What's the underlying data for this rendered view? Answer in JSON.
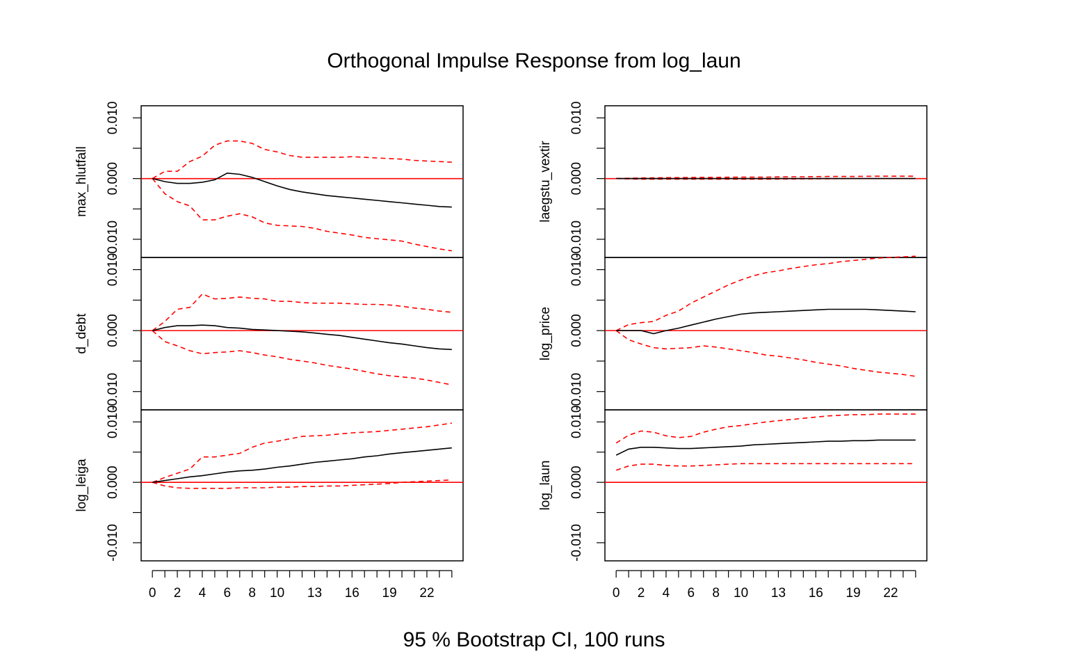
{
  "chart_data": {
    "type": "line",
    "title": "Orthogonal Impulse Response from log_laun",
    "xlabel": "95 % Bootstrap CI,  100 runs",
    "x": [
      0,
      1,
      2,
      3,
      4,
      5,
      6,
      7,
      8,
      9,
      10,
      11,
      12,
      13,
      14,
      15,
      16,
      17,
      18,
      19,
      20,
      21,
      22,
      23,
      24
    ],
    "x_tick_values": [
      0,
      1,
      2,
      3,
      4,
      5,
      6,
      7,
      8,
      9,
      10,
      11,
      12,
      13,
      14,
      15,
      16,
      17,
      18,
      19,
      20,
      21,
      22,
      23,
      24
    ],
    "x_tick_labels": [
      "0",
      "2",
      "4",
      "6",
      "8",
      "10",
      "13",
      "16",
      "19",
      "22"
    ],
    "x_labeled_ticks": [
      0,
      2,
      4,
      6,
      8,
      10,
      13,
      16,
      19,
      22
    ],
    "ylim": [
      -0.013,
      0.012
    ],
    "y_ticks": [
      -0.01,
      -0.005,
      0.0,
      0.005,
      0.01
    ],
    "y_tick_labels": [
      "-0.010",
      "",
      "0.000",
      "",
      "0.010"
    ],
    "zero_line_color": "#ff0000",
    "response_color": "#000000",
    "ci_color": "#ff0000",
    "panels": [
      {
        "name": "max_hlutfall",
        "column": 0,
        "row": 0,
        "response": [
          0,
          -0.0005,
          -0.0008,
          -0.0008,
          -0.0006,
          -0.0002,
          0.0009,
          0.0007,
          0.0002,
          -0.0005,
          -0.0012,
          -0.0018,
          -0.0022,
          -0.0025,
          -0.0028,
          -0.003,
          -0.0032,
          -0.0034,
          -0.0036,
          -0.0038,
          -0.004,
          -0.0042,
          -0.0044,
          -0.0046,
          -0.0047
        ],
        "upper": [
          0,
          0.0012,
          0.0012,
          0.0028,
          0.0037,
          0.0055,
          0.0062,
          0.0062,
          0.0058,
          0.0048,
          0.0044,
          0.0038,
          0.0035,
          0.0035,
          0.0035,
          0.0035,
          0.0036,
          0.0035,
          0.0034,
          0.0033,
          0.0032,
          0.003,
          0.0029,
          0.0028,
          0.0027
        ],
        "lower": [
          0,
          -0.0025,
          -0.0038,
          -0.0045,
          -0.0068,
          -0.0068,
          -0.0062,
          -0.0058,
          -0.0063,
          -0.0073,
          -0.0077,
          -0.0078,
          -0.0079,
          -0.0082,
          -0.0087,
          -0.009,
          -0.0093,
          -0.0097,
          -0.0099,
          -0.0101,
          -0.0103,
          -0.0108,
          -0.0112,
          -0.0116,
          -0.0119
        ]
      },
      {
        "name": "d_debt",
        "column": 0,
        "row": 1,
        "response": [
          0,
          0.0005,
          0.0008,
          0.0008,
          0.0009,
          0.0008,
          0.0005,
          0.0004,
          0.0002,
          0.0001,
          0.0,
          -0.0001,
          -0.0002,
          -0.0004,
          -0.0006,
          -0.0008,
          -0.0011,
          -0.0014,
          -0.0017,
          -0.002,
          -0.0022,
          -0.0025,
          -0.0028,
          -0.003,
          -0.0031
        ],
        "upper": [
          0,
          0.0015,
          0.0035,
          0.0038,
          0.006,
          0.0052,
          0.0053,
          0.0055,
          0.0053,
          0.0052,
          0.0048,
          0.0048,
          0.0046,
          0.0045,
          0.0045,
          0.0045,
          0.0044,
          0.0043,
          0.0043,
          0.0042,
          0.004,
          0.0037,
          0.0035,
          0.0032,
          0.003
        ],
        "lower": [
          0,
          -0.0018,
          -0.0025,
          -0.0033,
          -0.0038,
          -0.0036,
          -0.0035,
          -0.0033,
          -0.0036,
          -0.004,
          -0.0043,
          -0.0047,
          -0.005,
          -0.0053,
          -0.0057,
          -0.006,
          -0.0063,
          -0.0067,
          -0.0071,
          -0.0074,
          -0.0076,
          -0.0078,
          -0.0081,
          -0.0085,
          -0.0089
        ]
      },
      {
        "name": "log_leiga",
        "column": 0,
        "row": 2,
        "response": [
          0,
          0.0003,
          0.0006,
          0.0009,
          0.0011,
          0.0014,
          0.0017,
          0.0019,
          0.002,
          0.0022,
          0.0025,
          0.0027,
          0.003,
          0.0033,
          0.0035,
          0.0037,
          0.0039,
          0.0042,
          0.0044,
          0.0047,
          0.0049,
          0.0051,
          0.0053,
          0.0055,
          0.0057
        ],
        "upper": [
          0,
          0.0008,
          0.0015,
          0.0022,
          0.0042,
          0.0042,
          0.0045,
          0.0048,
          0.0058,
          0.0065,
          0.0068,
          0.0072,
          0.0076,
          0.0077,
          0.0078,
          0.008,
          0.0082,
          0.0083,
          0.0084,
          0.0086,
          0.0088,
          0.009,
          0.0092,
          0.0095,
          0.0098
        ],
        "lower": [
          0,
          -0.0006,
          -0.0009,
          -0.001,
          -0.001,
          -0.001,
          -0.001,
          -0.0009,
          -0.0009,
          -0.0009,
          -0.0008,
          -0.0008,
          -0.0007,
          -0.0007,
          -0.0006,
          -0.0006,
          -0.0005,
          -0.0004,
          -0.0003,
          -0.0002,
          0.0,
          0.0001,
          0.0002,
          0.0003,
          0.0004
        ]
      },
      {
        "name": "laegstu_vextir",
        "column": 1,
        "row": 0,
        "response": [
          0,
          0.0,
          0.0,
          0.0,
          0.0,
          0.0,
          0.0,
          0.0,
          0.0,
          0.0,
          0.0,
          0.0,
          0.0,
          0.0,
          0.0,
          0.0,
          0.0,
          0.0,
          0.0,
          0.0,
          0.0,
          0.0,
          0.0,
          0.0,
          0.0
        ],
        "upper": [
          0,
          5e-05,
          0.0001,
          0.00012,
          0.00015,
          0.00015,
          0.00018,
          0.0002,
          0.0002,
          0.00022,
          0.00025,
          0.00025,
          0.00025,
          0.00028,
          0.0003,
          0.0003,
          0.00032,
          0.00035,
          0.00035,
          0.00035,
          0.00038,
          0.0004,
          0.0004,
          0.0004,
          0.0004
        ],
        "lower": [
          0,
          -5e-05,
          -0.0001,
          -0.0001,
          -0.0001,
          -0.0001,
          -0.0001,
          -0.0001,
          -0.0001,
          -0.0001,
          -0.0001,
          -0.0001,
          -0.0001,
          -8e-05,
          -6e-05,
          -5e-05,
          -4e-05,
          -3e-05,
          -2e-05,
          0.0,
          0.0,
          0.0,
          0.0,
          0.0,
          0.0
        ]
      },
      {
        "name": "log_price",
        "column": 1,
        "row": 1,
        "response": [
          0,
          0.0,
          0.0,
          -0.0005,
          0.0,
          0.0004,
          0.0009,
          0.0014,
          0.0019,
          0.0023,
          0.0027,
          0.0029,
          0.003,
          0.0031,
          0.0032,
          0.0033,
          0.0034,
          0.0035,
          0.0035,
          0.0035,
          0.0035,
          0.0034,
          0.0033,
          0.0032,
          0.0031
        ],
        "upper": [
          0,
          0.001,
          0.0013,
          0.0015,
          0.0025,
          0.0032,
          0.0045,
          0.0055,
          0.0065,
          0.0075,
          0.0083,
          0.009,
          0.0095,
          0.0098,
          0.0102,
          0.0105,
          0.0108,
          0.011,
          0.0113,
          0.0115,
          0.0117,
          0.0119,
          0.012,
          0.0121,
          0.0122
        ],
        "lower": [
          0,
          -0.0015,
          -0.0022,
          -0.0028,
          -0.003,
          -0.0029,
          -0.0028,
          -0.0025,
          -0.0027,
          -0.003,
          -0.0033,
          -0.0036,
          -0.004,
          -0.0042,
          -0.0045,
          -0.0048,
          -0.0052,
          -0.0055,
          -0.0058,
          -0.0062,
          -0.0065,
          -0.0068,
          -0.007,
          -0.0072,
          -0.0075
        ]
      },
      {
        "name": "log_laun",
        "column": 1,
        "row": 2,
        "response": [
          0.0045,
          0.0055,
          0.0058,
          0.0058,
          0.0057,
          0.0056,
          0.0056,
          0.0057,
          0.0058,
          0.0059,
          0.006,
          0.0062,
          0.0063,
          0.0064,
          0.0065,
          0.0066,
          0.0067,
          0.0068,
          0.0068,
          0.0069,
          0.0069,
          0.007,
          0.007,
          0.007,
          0.007
        ],
        "upper": [
          0.0065,
          0.0078,
          0.0085,
          0.0083,
          0.0077,
          0.0074,
          0.0076,
          0.0083,
          0.0088,
          0.0092,
          0.0094,
          0.0097,
          0.01,
          0.0102,
          0.0104,
          0.0106,
          0.0108,
          0.011,
          0.0111,
          0.0112,
          0.0112,
          0.0113,
          0.0113,
          0.0113,
          0.0113
        ],
        "lower": [
          0.002,
          0.0027,
          0.003,
          0.003,
          0.0028,
          0.0027,
          0.0027,
          0.0028,
          0.0029,
          0.003,
          0.0031,
          0.0031,
          0.0031,
          0.0031,
          0.0031,
          0.0031,
          0.0031,
          0.0031,
          0.0031,
          0.0031,
          0.0031,
          0.0031,
          0.0031,
          0.0031,
          0.0031
        ]
      }
    ]
  }
}
